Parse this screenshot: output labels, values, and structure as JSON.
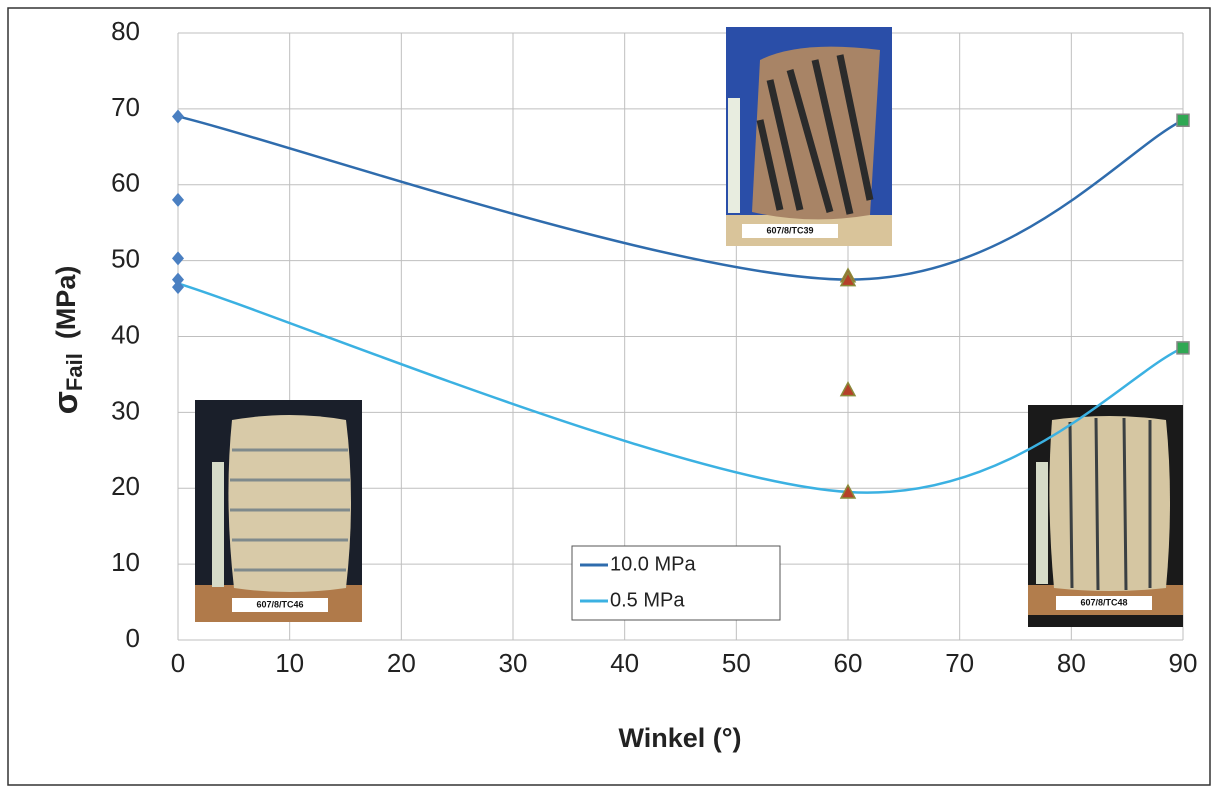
{
  "chart_data": {
    "type": "line",
    "x_label": "Winkel (°)",
    "y_label": {
      "symbol": "σ",
      "subscript": "Fail",
      "unit": "(MPa)"
    },
    "xlim": [
      0,
      90
    ],
    "xticks": [
      0,
      10,
      20,
      30,
      40,
      50,
      60,
      70,
      80,
      90
    ],
    "ylim": [
      0,
      80
    ],
    "yticks": [
      0,
      10,
      20,
      30,
      40,
      50,
      60,
      70,
      80
    ],
    "grid": true,
    "smooth": true,
    "legend": "bottom-center",
    "series": [
      {
        "name": "10.0 MPa",
        "color": "#2f6cad",
        "x": [
          0,
          60,
          90
        ],
        "values": [
          69,
          47.5,
          68.5
        ]
      },
      {
        "name": "0.5 MPa",
        "color": "#3bb1e2",
        "x": [
          0,
          60,
          90
        ],
        "values": [
          47,
          19.5,
          38.5
        ]
      }
    ],
    "points": [
      {
        "marker": "diamond",
        "color": "#4a7fc1",
        "x": [
          0,
          0,
          0,
          0,
          0
        ],
        "y": [
          69,
          58,
          50.3,
          47.5,
          46.5
        ]
      },
      {
        "marker": "triangle",
        "color": "#b5402a",
        "x": [
          60,
          60,
          60,
          60
        ],
        "y": [
          48,
          47.5,
          33,
          19.5
        ]
      },
      {
        "marker": "square",
        "color": "#2fa853",
        "x": [
          90,
          90
        ],
        "y": [
          68.5,
          38.5
        ]
      }
    ],
    "photos": [
      {
        "label": "607/8/TC39"
      },
      {
        "label": "607/8/TC46"
      },
      {
        "label": "607/8/TC48"
      }
    ]
  }
}
